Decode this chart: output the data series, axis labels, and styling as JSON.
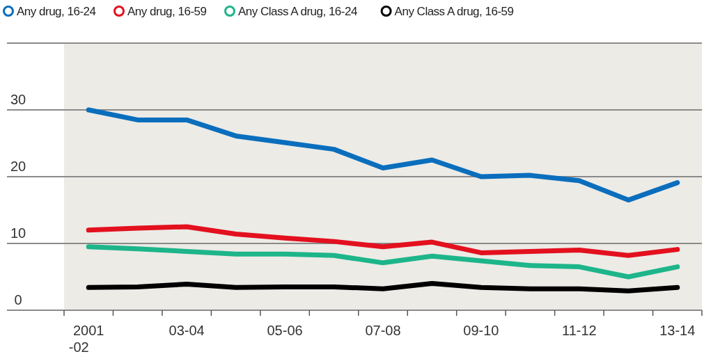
{
  "chart_data": {
    "type": "line",
    "categories": [
      "2001\n-02",
      null,
      "03-04",
      null,
      "05-06",
      null,
      "07-08",
      null,
      "09-10",
      null,
      "11-12",
      null,
      "13-14"
    ],
    "series": [
      {
        "name": "Any drug, 16-24",
        "color": "#0a6ebd",
        "values": [
          30,
          28.5,
          28.5,
          26.1,
          25.1,
          24.1,
          21.3,
          22.5,
          20,
          20.2,
          19.4,
          16.5,
          19.1
        ]
      },
      {
        "name": "Any drug, 16-59",
        "color": "#e3101e",
        "values": [
          12,
          12.3,
          12.5,
          11.4,
          10.8,
          10.3,
          9.5,
          10.2,
          8.6,
          8.8,
          9,
          8.2,
          9.1
        ]
      },
      {
        "name": "Any Class A drug, 16-24",
        "color": "#1db58a",
        "values": [
          9.5,
          9.2,
          8.8,
          8.4,
          8.4,
          8.2,
          7.1,
          8.1,
          7.4,
          6.7,
          6.5,
          5,
          6.5
        ]
      },
      {
        "name": "Any Class A drug, 16-59",
        "color": "#000000",
        "values": [
          3.4,
          3.5,
          3.9,
          3.4,
          3.5,
          3.5,
          3.2,
          4,
          3.4,
          3.2,
          3.2,
          2.9,
          3.4
        ]
      }
    ],
    "ylim": [
      0,
      40
    ],
    "yticks": [
      0,
      10,
      20,
      30,
      {
        "value": 40,
        "label": null
      }
    ],
    "grid": "y",
    "legend": "top",
    "marker": "none"
  }
}
